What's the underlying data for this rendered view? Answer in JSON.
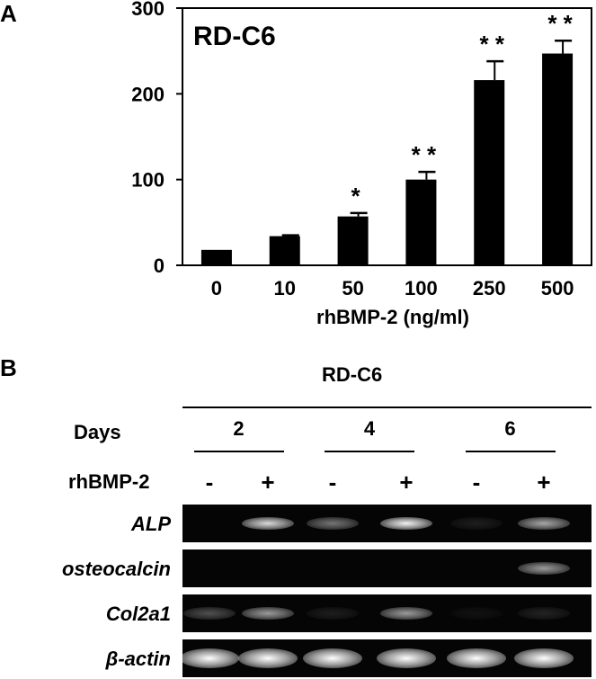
{
  "panel_a": {
    "letter": "A",
    "label": "RD-C6"
  },
  "chart_data": {
    "type": "bar",
    "title": "",
    "inset_label": "RD-C6",
    "categories": [
      "0",
      "10",
      "50",
      "100",
      "250",
      "500"
    ],
    "values": [
      18,
      34,
      57,
      100,
      216,
      247
    ],
    "errors": [
      0,
      1,
      4,
      9,
      22,
      15
    ],
    "significance": [
      "",
      "",
      "*",
      "* *",
      "* *",
      "* *"
    ],
    "xlabel": "rhBMP-2 (ng/ml)",
    "ylabel": "",
    "ylim": [
      0,
      300
    ],
    "yticks": [
      "0",
      "100",
      "200",
      "300"
    ],
    "grid": false,
    "bar_color": "#000000"
  },
  "panel_b": {
    "letter": "B",
    "cell_line": "RD-C6",
    "days_label": "Days",
    "days": [
      "2",
      "4",
      "6"
    ],
    "treatment_label": "rhBMP-2",
    "treatments": [
      "-",
      "+",
      "-",
      "+",
      "-",
      "+"
    ],
    "genes": [
      {
        "name": "ALP",
        "intensities": [
          0,
          0.85,
          0.45,
          0.95,
          0.1,
          0.65
        ]
      },
      {
        "name": "osteocalcin",
        "intensities": [
          0,
          0,
          0,
          0,
          0,
          0.6
        ]
      },
      {
        "name": "Col2a1",
        "intensities": [
          0.3,
          0.6,
          0.1,
          0.6,
          0.05,
          0.12
        ]
      },
      {
        "name": "β-actin",
        "intensities": [
          1,
          1,
          1,
          1,
          1,
          1
        ]
      }
    ]
  }
}
